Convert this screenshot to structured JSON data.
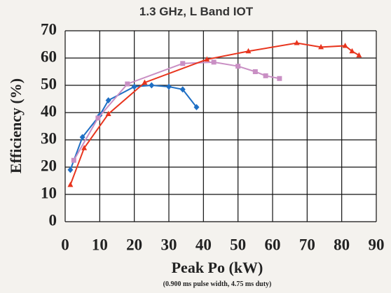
{
  "chart_data": {
    "type": "line",
    "title": "1.3 GHz, L Band IOT",
    "x_label": "Peak Po (kW)",
    "x_sublabel": "(0.900 ms pulse width, 4.75 ms duty)",
    "y_label": "Efficiency (%)",
    "xlim": [
      0,
      90
    ],
    "xticks": [
      0,
      10,
      20,
      30,
      40,
      50,
      60,
      70,
      80,
      90
    ],
    "ylim": [
      0,
      70
    ],
    "yticks": [
      0,
      10,
      20,
      30,
      40,
      50,
      60,
      70
    ],
    "grid": true,
    "series": [
      {
        "color": "#1f6fc4",
        "marker": "diamond",
        "x": [
          1.5,
          5,
          10,
          12.5,
          20,
          25,
          30,
          34,
          38
        ],
        "values": [
          19,
          31,
          39,
          44.5,
          49.5,
          50,
          49.5,
          48.5,
          42
        ]
      },
      {
        "color": "#c98fc4",
        "marker": "square",
        "x": [
          2.5,
          9.5,
          18,
          34,
          43,
          50,
          55,
          58,
          62
        ],
        "values": [
          22.5,
          38,
          50.5,
          58,
          58.5,
          57,
          55,
          53.5,
          52.5
        ]
      },
      {
        "color": "#e8351e",
        "marker": "triangle",
        "x": [
          1.5,
          5.5,
          12.5,
          23,
          41,
          53,
          67,
          74,
          81,
          83,
          85
        ],
        "values": [
          13.5,
          27,
          39.5,
          51,
          59.5,
          62.5,
          65.5,
          64,
          64.5,
          62.5,
          61
        ]
      }
    ]
  }
}
